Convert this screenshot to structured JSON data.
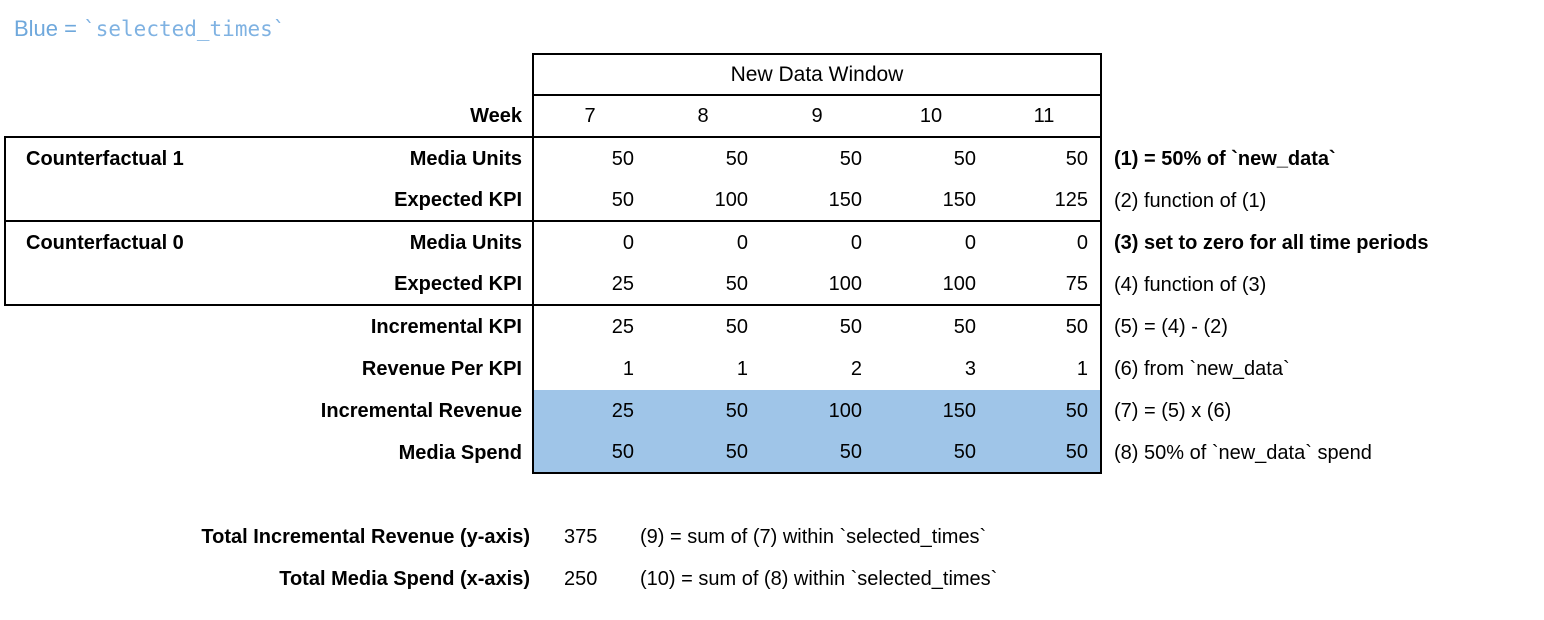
{
  "legend": {
    "prefix": "Blue = ",
    "code": "`selected_times`"
  },
  "colors": {
    "highlight_fill": "#9fc5e8",
    "legend_text": "#6fa8dc",
    "legend_code_text": "#7fb2e2"
  },
  "table": {
    "header": "New Data Window",
    "week_label": "Week",
    "weeks": [
      "7",
      "8",
      "9",
      "10",
      "11"
    ],
    "rows": [
      {
        "group": "Counterfactual 1",
        "label": "Media Units",
        "values": [
          "50",
          "50",
          "50",
          "50",
          "50"
        ],
        "note": "(1) = 50% of `new_data`",
        "note_bold": true,
        "boxed": true
      },
      {
        "label": "Expected KPI",
        "values": [
          "50",
          "100",
          "150",
          "150",
          "125"
        ],
        "note": "(2) function of (1)",
        "note_bold": false,
        "boxed": true,
        "sep_below": true
      },
      {
        "group": "Counterfactual 0",
        "label": "Media Units",
        "values": [
          "0",
          "0",
          "0",
          "0",
          "0"
        ],
        "note": "(3) set to zero for all time periods",
        "note_bold": true,
        "boxed": true
      },
      {
        "label": "Expected KPI",
        "values": [
          "25",
          "50",
          "100",
          "100",
          "75"
        ],
        "note": "(4) function of (3)",
        "note_bold": false,
        "boxed": true,
        "sep_below": true
      },
      {
        "label": "Incremental KPI",
        "values": [
          "25",
          "50",
          "50",
          "50",
          "50"
        ],
        "note": "(5) = (4) - (2)",
        "note_bold": false
      },
      {
        "label": "Revenue Per KPI",
        "values": [
          "1",
          "1",
          "2",
          "3",
          "1"
        ],
        "note": "(6) from `new_data`",
        "note_bold": false
      },
      {
        "label": "Incremental Revenue",
        "values": [
          "25",
          "50",
          "100",
          "150",
          "50"
        ],
        "note": "(7) = (5) x (6)",
        "note_bold": false,
        "highlight": true
      },
      {
        "label": "Media Spend",
        "values": [
          "50",
          "50",
          "50",
          "50",
          "50"
        ],
        "note": "(8) 50% of `new_data` spend",
        "note_bold": false,
        "highlight": true,
        "data_bottom": true
      }
    ]
  },
  "summary": {
    "rows": [
      {
        "label": "Total Incremental Revenue (y-axis)",
        "value": "375",
        "note": "(9) = sum of (7) within `selected_times`"
      },
      {
        "label": "Total Media Spend (x-axis)",
        "value": "250",
        "note": "(10) = sum of (8) within `selected_times`"
      }
    ]
  },
  "chart_data": {
    "type": "table",
    "title": "New Data Window",
    "categories": [
      7,
      8,
      9,
      10,
      11
    ],
    "series": [
      {
        "name": "Counterfactual 1 Media Units",
        "values": [
          50,
          50,
          50,
          50,
          50
        ]
      },
      {
        "name": "Counterfactual 1 Expected KPI",
        "values": [
          50,
          100,
          150,
          150,
          125
        ]
      },
      {
        "name": "Counterfactual 0 Media Units",
        "values": [
          0,
          0,
          0,
          0,
          0
        ]
      },
      {
        "name": "Counterfactual 0 Expected KPI",
        "values": [
          25,
          50,
          100,
          100,
          75
        ]
      },
      {
        "name": "Incremental KPI",
        "values": [
          25,
          50,
          50,
          50,
          50
        ]
      },
      {
        "name": "Revenue Per KPI",
        "values": [
          1,
          1,
          2,
          3,
          1
        ]
      },
      {
        "name": "Incremental Revenue",
        "values": [
          25,
          50,
          100,
          150,
          50
        ]
      },
      {
        "name": "Media Spend",
        "values": [
          50,
          50,
          50,
          50,
          50
        ]
      }
    ],
    "totals": [
      {
        "name": "Total Incremental Revenue (y-axis)",
        "value": 375
      },
      {
        "name": "Total Media Spend (x-axis)",
        "value": 250
      }
    ],
    "highlighted_rows": [
      "Incremental Revenue",
      "Media Spend"
    ],
    "xlabel": "Week",
    "ylabel": "",
    "legend_position": "none",
    "grid": false
  }
}
